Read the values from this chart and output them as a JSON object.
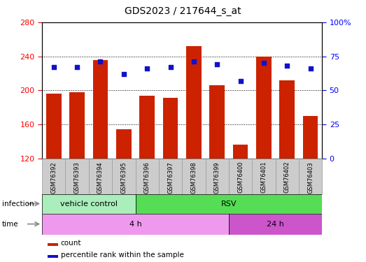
{
  "title": "GDS2023 / 217644_s_at",
  "samples": [
    "GSM76392",
    "GSM76393",
    "GSM76394",
    "GSM76395",
    "GSM76396",
    "GSM76397",
    "GSM76398",
    "GSM76399",
    "GSM76400",
    "GSM76401",
    "GSM76402",
    "GSM76403"
  ],
  "count_values": [
    196,
    198,
    236,
    154,
    194,
    191,
    252,
    206,
    136,
    240,
    212,
    170
  ],
  "percentile_values": [
    67,
    67,
    71,
    62,
    66,
    67,
    71,
    69,
    57,
    70,
    68,
    66
  ],
  "ylim_left": [
    120,
    280
  ],
  "ylim_right": [
    0,
    100
  ],
  "yticks_left": [
    120,
    160,
    200,
    240,
    280
  ],
  "yticks_right": [
    0,
    25,
    50,
    75,
    100
  ],
  "ytick_right_labels": [
    "0",
    "25",
    "50",
    "75",
    "100%"
  ],
  "bar_color": "#cc2200",
  "dot_color": "#1111cc",
  "infection_labels": [
    {
      "label": "vehicle control",
      "start": 0,
      "end": 4,
      "color": "#aaeebb"
    },
    {
      "label": "RSV",
      "start": 4,
      "end": 12,
      "color": "#55dd55"
    }
  ],
  "time_labels": [
    {
      "label": "4 h",
      "start": 0,
      "end": 8,
      "color": "#ee99ee"
    },
    {
      "label": "24 h",
      "start": 8,
      "end": 12,
      "color": "#cc55cc"
    }
  ],
  "legend_items": [
    "count",
    "percentile rank within the sample"
  ],
  "sample_bg_color": "#cccccc",
  "sample_border_color": "#999999"
}
